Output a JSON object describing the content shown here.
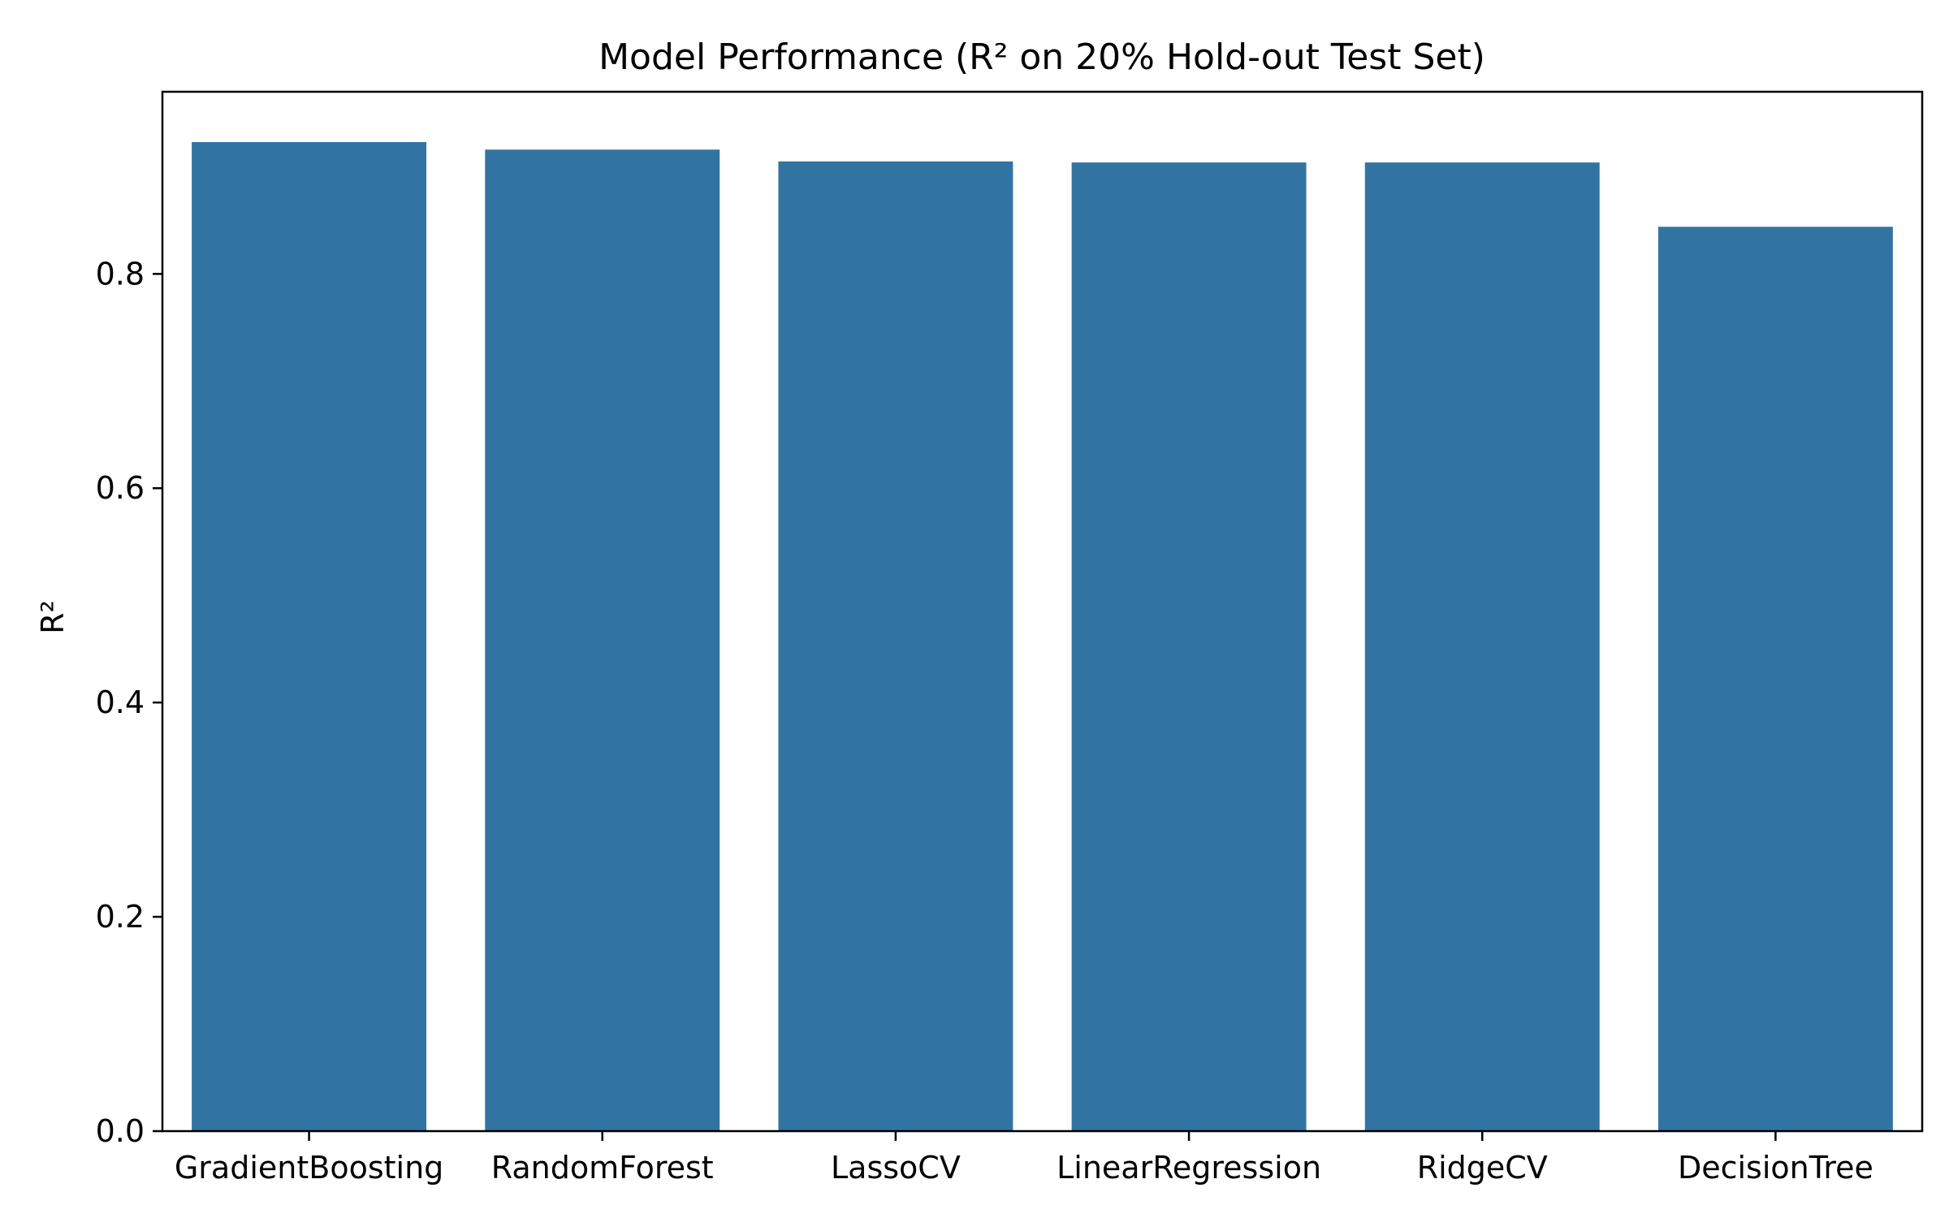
{
  "chart_data": {
    "type": "bar",
    "title": "Model Performance (R² on 20% Hold-out Test Set)",
    "xlabel": "",
    "ylabel": "R²",
    "categories": [
      "GradientBoosting",
      "RandomForest",
      "LassoCV",
      "LinearRegression",
      "RidgeCV",
      "DecisionTree"
    ],
    "values": [
      0.923,
      0.916,
      0.905,
      0.904,
      0.904,
      0.844
    ],
    "ylim": [
      0,
      0.97
    ],
    "yticks": [
      0.0,
      0.2,
      0.4,
      0.6,
      0.8
    ],
    "ytick_labels": [
      "0.0",
      "0.2",
      "0.4",
      "0.6",
      "0.8"
    ],
    "bar_color": "#3274a1",
    "grid": false,
    "legend": "none"
  }
}
